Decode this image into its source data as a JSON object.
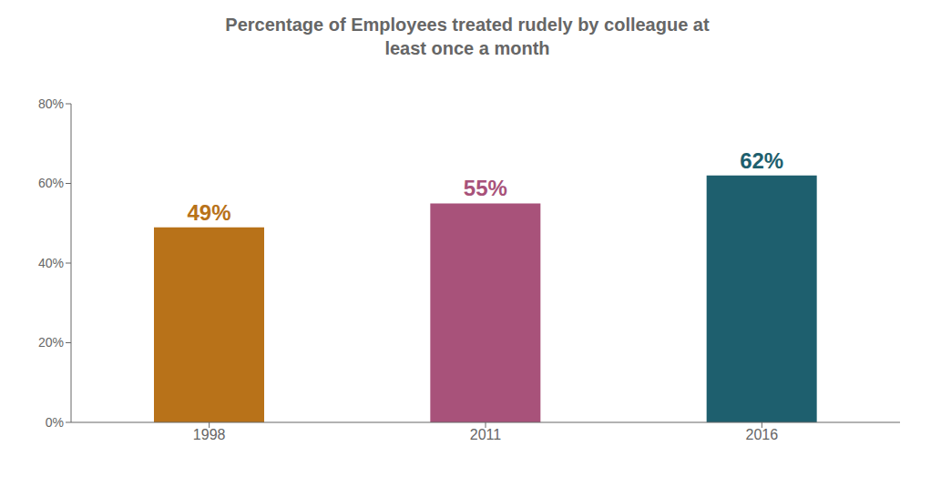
{
  "chart_data": {
    "type": "bar",
    "title": "Percentage of Employees treated rudely by colleague at\nleast once a month",
    "categories": [
      "1998",
      "2011",
      "2016"
    ],
    "values": [
      49,
      55,
      62
    ],
    "value_labels": [
      "49%",
      "55%",
      "62%"
    ],
    "data_labels": true,
    "colors": [
      "#B87219",
      "#A8527A",
      "#1E5F6E"
    ],
    "ylim": [
      0,
      80
    ],
    "yticks": [
      {
        "value": 0,
        "label": "0%"
      },
      {
        "value": 20,
        "label": "20%"
      },
      {
        "value": 40,
        "label": "40%"
      },
      {
        "value": 60,
        "label": "60%"
      },
      {
        "value": 80,
        "label": "80%"
      }
    ],
    "grid": false
  }
}
